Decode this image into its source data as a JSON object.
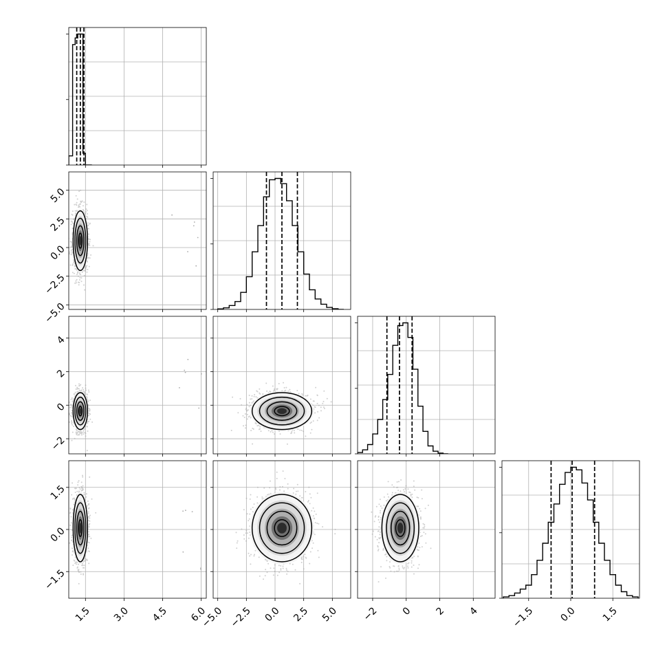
{
  "colors": {
    "line": "#000000",
    "grid": "#b0b0b0",
    "scatter": "#a8a8a8",
    "fill_levels": [
      "#f4f4f4",
      "#d6d6d6",
      "#a9a9a9",
      "#6a6a6a",
      "#262626"
    ]
  },
  "chart_data": {
    "type": "corner",
    "grid": true,
    "params": [
      {
        "name": "",
        "range": [
          0.85,
          6.2
        ],
        "ticks": [
          1.5,
          3.0,
          4.5,
          6.0
        ],
        "tick_labels": [
          "1.5",
          "3.0",
          "4.5",
          "6.0"
        ],
        "mean": 1.3,
        "sd": 0.14,
        "quantiles": [
          1.16,
          1.3,
          1.44
        ],
        "hist_bins": [
          0.85,
          1.0,
          1.1,
          1.2,
          1.3,
          1.4,
          1.5,
          1.6,
          1.75
        ],
        "hist_counts": [
          0.07,
          0.92,
          0.97,
          1.0,
          1.0,
          0.09,
          0.0,
          0.0
        ]
      },
      {
        "name": "",
        "range": [
          -5.4,
          6.6
        ],
        "ticks": [
          -5.0,
          -2.5,
          0.0,
          2.5,
          5.0
        ],
        "tick_labels": [
          "−5.0",
          "−2.5",
          "0.0",
          "2.5",
          "5.0"
        ],
        "mean": 0.6,
        "sd": 1.3,
        "quantiles": [
          -0.75,
          0.6,
          1.95
        ],
        "hist_bins": [
          -5.0,
          -4.5,
          -4.0,
          -3.5,
          -3.0,
          -2.5,
          -2.0,
          -1.5,
          -1.0,
          -0.5,
          0.0,
          0.5,
          1.0,
          1.5,
          2.0,
          2.5,
          3.0,
          3.5,
          4.0,
          4.5,
          5.0,
          5.5,
          6.0
        ],
        "hist_counts": [
          0.004,
          0.012,
          0.03,
          0.06,
          0.13,
          0.25,
          0.44,
          0.64,
          0.86,
          0.99,
          1.0,
          0.96,
          0.83,
          0.64,
          0.44,
          0.27,
          0.15,
          0.08,
          0.04,
          0.015,
          0.006,
          0.0
        ]
      },
      {
        "name": "",
        "range": [
          -2.9,
          5.3
        ],
        "ticks": [
          -2,
          0,
          2,
          4
        ],
        "tick_labels": [
          "−2",
          "0",
          "2",
          "4"
        ],
        "mean": -0.35,
        "sd": 0.55,
        "quantiles": [
          -1.15,
          -0.4,
          0.35
        ],
        "hist_bins": [
          -2.9,
          -2.6,
          -2.3,
          -2.0,
          -1.7,
          -1.4,
          -1.1,
          -0.8,
          -0.5,
          -0.2,
          0.1,
          0.4,
          0.7,
          1.0,
          1.3,
          1.6,
          1.9,
          2.2,
          2.5
        ],
        "hist_counts": [
          0.01,
          0.03,
          0.07,
          0.15,
          0.26,
          0.41,
          0.6,
          0.82,
          0.97,
          0.99,
          0.88,
          0.64,
          0.36,
          0.17,
          0.06,
          0.02,
          0.005,
          0.0
        ]
      },
      {
        "name": "",
        "range": [
          -2.45,
          2.45
        ],
        "ticks": [
          -1.5,
          0.0,
          1.5
        ],
        "tick_labels": [
          "−1.5",
          "0.0",
          "1.5"
        ],
        "mean": 0.05,
        "sd": 0.6,
        "quantiles": [
          -0.7,
          0.05,
          0.85
        ],
        "hist_bins": [
          -2.4,
          -2.2,
          -2.0,
          -1.8,
          -1.6,
          -1.4,
          -1.2,
          -1.0,
          -0.8,
          -0.6,
          -0.4,
          -0.2,
          0.0,
          0.2,
          0.4,
          0.6,
          0.8,
          1.0,
          1.2,
          1.4,
          1.6,
          1.8,
          2.0,
          2.2,
          2.4
        ],
        "hist_counts": [
          0.01,
          0.02,
          0.04,
          0.07,
          0.1,
          0.18,
          0.29,
          0.42,
          0.58,
          0.72,
          0.87,
          0.96,
          1.0,
          0.98,
          0.88,
          0.75,
          0.58,
          0.42,
          0.29,
          0.18,
          0.1,
          0.05,
          0.02,
          0.01
        ]
      }
    ]
  }
}
